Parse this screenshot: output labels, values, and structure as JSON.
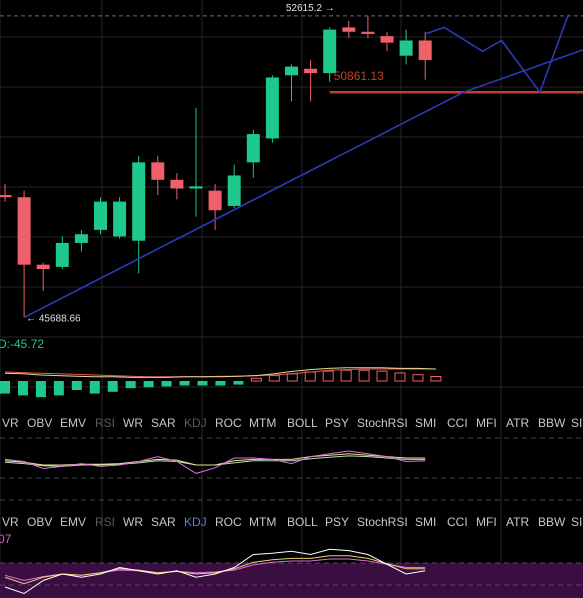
{
  "chart_data": {
    "type": "candlestick",
    "annotations": {
      "high_label": "52615.2",
      "low_label": "45688.66",
      "price_line_label": "50861.13",
      "high_arrow": "→",
      "low_arrow": "←",
      "high_value": 52615.2,
      "low_value": 45688.66,
      "price_line_value": 50861.13
    },
    "candles": [
      {
        "o": 48500,
        "c": 48450,
        "h": 48750,
        "l": 48350
      },
      {
        "o": 48450,
        "c": 46900,
        "h": 48600,
        "l": 45688.66
      },
      {
        "o": 46900,
        "c": 46800,
        "h": 46950,
        "l": 46300
      },
      {
        "o": 46850,
        "c": 47400,
        "h": 47550,
        "l": 46800
      },
      {
        "o": 47400,
        "c": 47600,
        "h": 47700,
        "l": 47200
      },
      {
        "o": 47700,
        "c": 48350,
        "h": 48450,
        "l": 47600
      },
      {
        "o": 47550,
        "c": 48350,
        "h": 48450,
        "l": 47500
      },
      {
        "o": 47450,
        "c": 49250,
        "h": 49400,
        "l": 46700
      },
      {
        "o": 49250,
        "c": 48850,
        "h": 49400,
        "l": 48500
      },
      {
        "o": 48850,
        "c": 48650,
        "h": 49000,
        "l": 48400
      },
      {
        "o": 48650,
        "c": 48700,
        "h": 50500,
        "l": 48000
      },
      {
        "o": 48600,
        "c": 48150,
        "h": 48750,
        "l": 47700
      },
      {
        "o": 48250,
        "c": 48950,
        "h": 49200,
        "l": 48200
      },
      {
        "o": 49250,
        "c": 49900,
        "h": 50000,
        "l": 48900
      },
      {
        "o": 49800,
        "c": 51200,
        "h": 51250,
        "l": 49700
      },
      {
        "o": 51250,
        "c": 51450,
        "h": 51500,
        "l": 50650
      },
      {
        "o": 51400,
        "c": 51300,
        "h": 51600,
        "l": 50650
      },
      {
        "o": 51300,
        "c": 52300,
        "h": 52350,
        "l": 51100
      },
      {
        "o": 52350,
        "c": 52250,
        "h": 52500,
        "l": 52100
      },
      {
        "o": 52250,
        "c": 52200,
        "h": 52615.2,
        "l": 52100
      },
      {
        "o": 52150,
        "c": 52000,
        "h": 52250,
        "l": 51800
      },
      {
        "o": 51700,
        "c": 52050,
        "h": 52300,
        "l": 51500
      },
      {
        "o": 52050,
        "c": 51600,
        "h": 52250,
        "l": 51150
      }
    ],
    "dashed_level": 52615.2,
    "trendlines": [
      {
        "color": "#2c3ab8",
        "points": [
          [
            1,
            45688.66
          ],
          [
            24,
            50861.13
          ],
          [
            31,
            51950
          ]
        ]
      },
      {
        "color": "#2c3ab8",
        "points": [
          [
            22,
            52200
          ],
          [
            23,
            52350
          ],
          [
            25,
            51800
          ],
          [
            26,
            52050
          ],
          [
            28,
            50861.13
          ],
          [
            29.5,
            52650
          ]
        ]
      }
    ],
    "hline_segment": {
      "color": "#c2401f",
      "from_x": 17,
      "to_x": 31,
      "value": 50861.13
    },
    "macd": {
      "readout": "D:-45.72",
      "histogram": [
        -14,
        -16,
        -18,
        -16,
        -10,
        -14,
        -12,
        -8,
        -7,
        -6,
        -5,
        -5,
        -5,
        -4,
        3,
        6,
        8,
        10,
        11,
        12,
        12,
        11,
        9,
        7,
        5
      ],
      "dif": [
        3,
        2,
        0,
        -1,
        -2,
        -3,
        -3,
        -4,
        -4,
        -4,
        -3,
        -3,
        -3,
        -2,
        -1,
        2,
        6,
        9,
        11,
        12,
        12,
        12,
        11,
        11,
        10
      ],
      "dea": [
        5,
        4,
        3,
        2,
        1,
        0,
        -1,
        -2,
        -3,
        -3,
        -3,
        -3,
        -2,
        -2,
        -1,
        0,
        2,
        5,
        8,
        9,
        10,
        10,
        10,
        10,
        10
      ]
    },
    "indicator_tabs": [
      "VR",
      "OBV",
      "EMV",
      "RSI",
      "WR",
      "SAR",
      "KDJ",
      "ROC",
      "MTM",
      "BOLL",
      "PSY",
      "StochRSI",
      "SMI",
      "CCI",
      "MFI",
      "ATR",
      "BBW",
      "SI"
    ],
    "tabs_row1_dim": [
      "RSI",
      "KDJ"
    ],
    "tabs_row2_dim": [
      "RSI"
    ],
    "tabs_row2_active": "KDJ",
    "ind1": {
      "line_a": [
        58,
        55,
        45,
        48,
        52,
        48,
        50,
        55,
        62,
        55,
        38,
        46,
        60,
        60,
        58,
        52,
        62,
        66,
        70,
        66,
        62,
        55,
        56
      ],
      "line_b": [
        56,
        54,
        50,
        50,
        51,
        51,
        52,
        55,
        58,
        57,
        50,
        50,
        56,
        58,
        58,
        58,
        62,
        64,
        66,
        64,
        62,
        60,
        60
      ],
      "line_c": [
        54,
        52,
        49,
        48,
        50,
        50,
        51,
        53,
        56,
        55,
        50,
        50,
        53,
        56,
        56,
        56,
        59,
        61,
        63,
        62,
        60,
        58,
        58
      ]
    },
    "ind2": {
      "readout": "07",
      "line_a": [
        20,
        10,
        30,
        40,
        35,
        40,
        50,
        45,
        40,
        45,
        35,
        40,
        50,
        70,
        72,
        75,
        70,
        78,
        76,
        70,
        55,
        40,
        45
      ],
      "line_b": [
        35,
        25,
        35,
        40,
        38,
        42,
        48,
        46,
        42,
        44,
        40,
        42,
        48,
        58,
        62,
        64,
        64,
        68,
        68,
        64,
        56,
        48,
        48
      ],
      "line_c": [
        38,
        30,
        36,
        40,
        38,
        42,
        46,
        45,
        42,
        44,
        42,
        43,
        46,
        54,
        58,
        60,
        60,
        63,
        63,
        60,
        55,
        50,
        50
      ]
    },
    "colors": {
      "up": "#1ec98b",
      "down": "#f0606a",
      "grid": "#242430",
      "dashed": "#6e6e6e",
      "macd_hist_pos": "#f0606a",
      "macd_hist_neg": "#1ec98b",
      "dif": "#e8d88a",
      "dea": "#e05a5a",
      "readout_green": "#1ec98b",
      "readout_magenta": "#d060d0",
      "ind1_a": "#e070e0",
      "ind1_b": "#e8e090",
      "ind1_c": "#b0e0b0",
      "ind2_a": "#ffffff",
      "ind2_b": "#e8d070",
      "ind2_c": "#e070e0",
      "ind2_band": "#3a0e40"
    }
  }
}
